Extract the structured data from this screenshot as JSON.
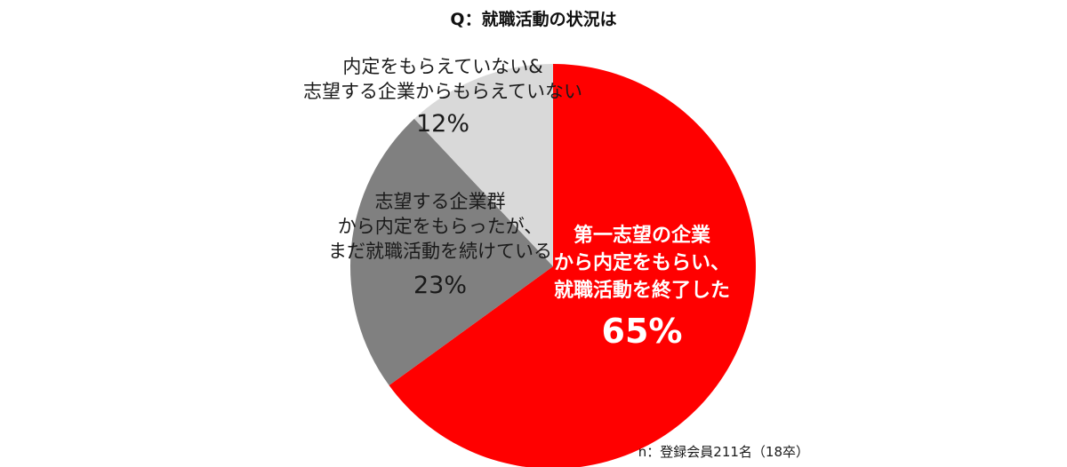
{
  "chart_data": {
    "type": "pie",
    "title": "Q：就職活動の状況は",
    "slices": [
      {
        "label_lines": [
          "第一志望の企業",
          "から内定をもらい、",
          "就職活動を終了した"
        ],
        "value": 65,
        "value_label": "65%",
        "color": "#ff0000"
      },
      {
        "label_lines": [
          "志望する企業群",
          "から内定をもらったが、",
          "まだ就職活動を続けている"
        ],
        "value": 23,
        "value_label": "23%",
        "color": "#808080"
      },
      {
        "label_lines": [
          "内定をもらえていない&",
          "志望する企業からもらえていない"
        ],
        "value": 12,
        "value_label": "12%",
        "color": "#d9d9d9"
      }
    ],
    "note": "n：登録会員211名（18卒）"
  }
}
